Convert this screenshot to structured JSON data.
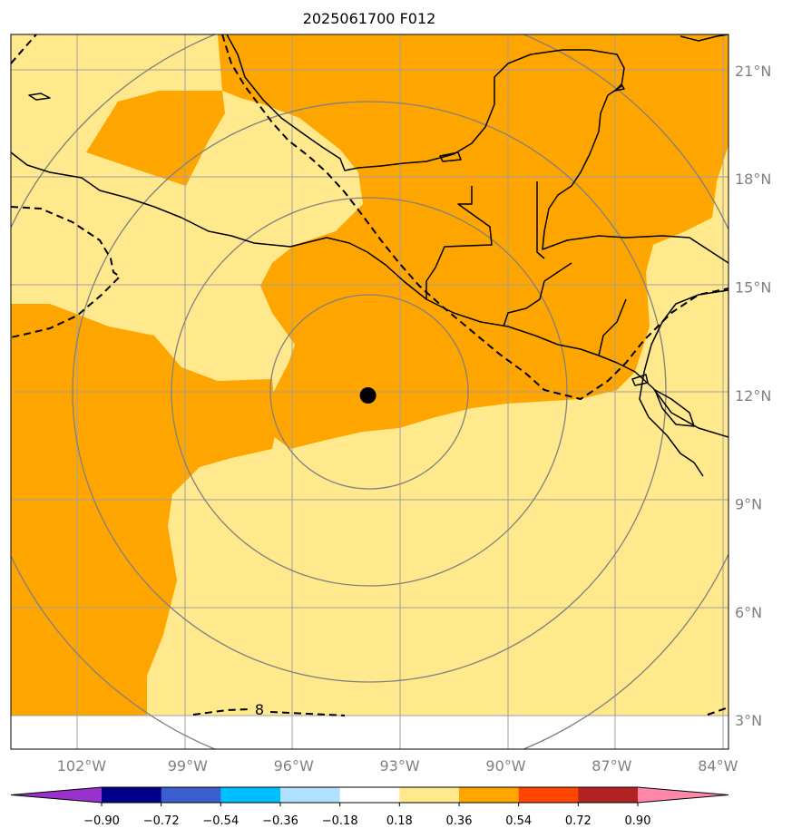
{
  "title": "2025061700 F012",
  "map": {
    "lon_range": [
      -104,
      -83.7
    ],
    "lat_range": [
      2.2,
      22
    ],
    "data_extent_lat_min": 3.0,
    "storm_center": {
      "lon": -93.9,
      "lat": 12.0
    },
    "contour_label": "8",
    "lon_ticks": [
      {
        "value": -102,
        "label": "102°W"
      },
      {
        "value": -99,
        "label": "99°W"
      },
      {
        "value": -96,
        "label": "96°W"
      },
      {
        "value": -93,
        "label": "93°W"
      },
      {
        "value": -90,
        "label": "90°W"
      },
      {
        "value": -87,
        "label": "87°W"
      },
      {
        "value": -84,
        "label": "84°W"
      }
    ],
    "lat_ticks": [
      {
        "value": 21,
        "label": "21°N"
      },
      {
        "value": 18,
        "label": "18°N"
      },
      {
        "value": 15,
        "label": "15°N"
      },
      {
        "value": 12,
        "label": "12°N"
      },
      {
        "value": 9,
        "label": "9°N"
      },
      {
        "value": 6,
        "label": "6°N"
      },
      {
        "value": 3,
        "label": "3°N"
      }
    ],
    "range_rings": [
      {
        "lat_radius": 2.7
      },
      {
        "lat_radius": 5.4
      },
      {
        "lat_radius": 8.1
      },
      {
        "lat_radius": 10.8
      }
    ],
    "colors": {
      "light_yellow": "#ffe98c",
      "orange": "#ffa500",
      "grid": "#a0a0a0",
      "ring": "#808080",
      "coast": "#000000"
    }
  },
  "colorbar": {
    "labels": [
      "−0.90",
      "−0.72",
      "−0.54",
      "−0.36",
      "−0.18",
      "0.18",
      "0.36",
      "0.54",
      "0.72",
      "0.90"
    ],
    "colors": [
      "#9932cc",
      "#00008b",
      "#3a5fcd",
      "#00bfff",
      "#b0e2ff",
      "#ffffff",
      "#ffe98c",
      "#ffa500",
      "#ff4500",
      "#b22222",
      "#ff88aa"
    ]
  }
}
